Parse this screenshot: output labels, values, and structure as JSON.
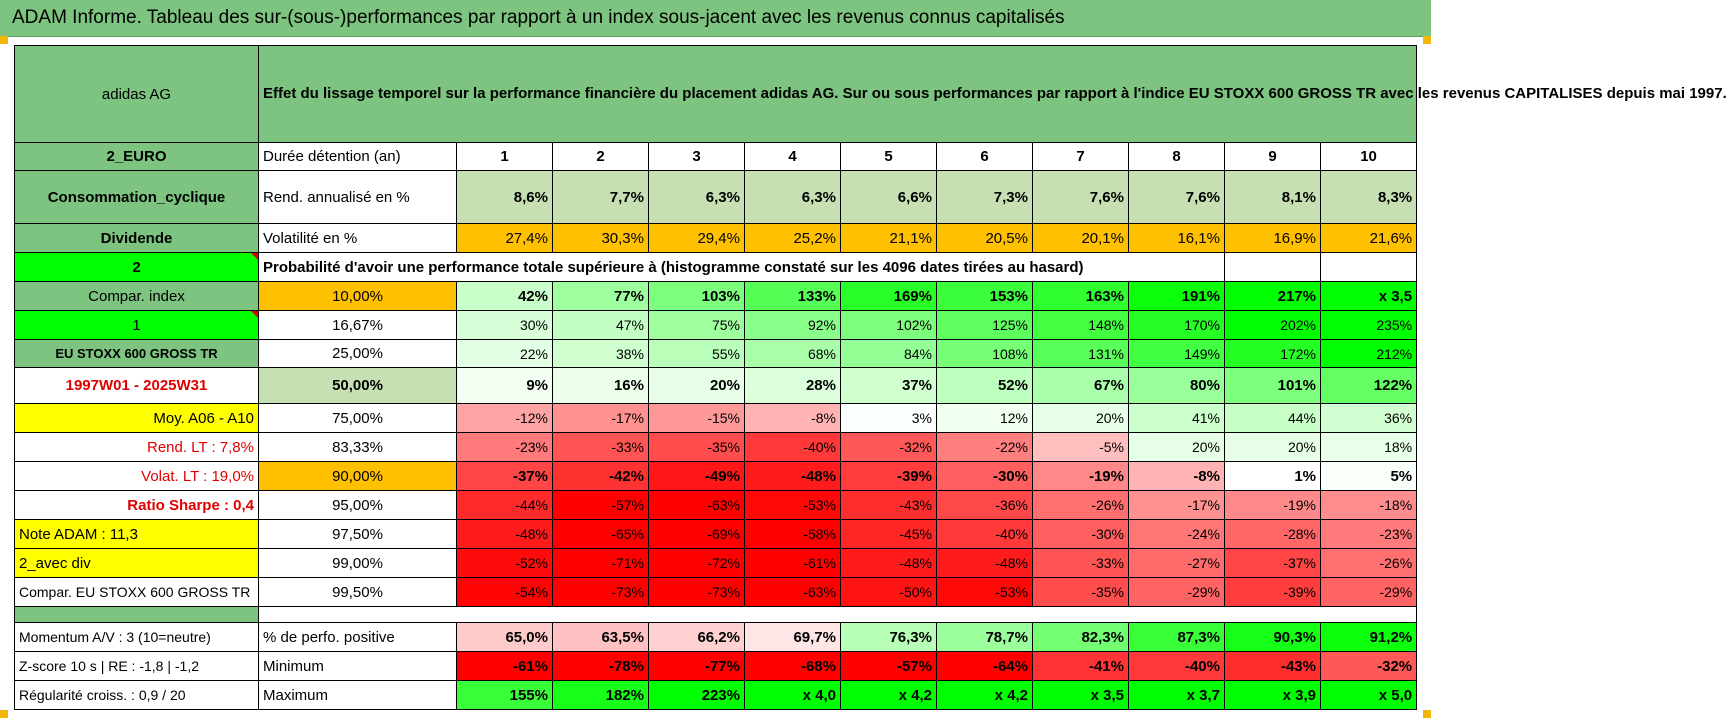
{
  "report_title": "ADAM Informe. Tableau des sur-(sous-)performances par rapport à un index sous-jacent avec les revenus connus capitalisés",
  "stock_name": "adidas AG",
  "description": "Effet du lissage temporel sur la performance financière du placement adidas AG. Sur ou sous performances par rapport à l'indice EU STOXX 600 GROSS TR avec les revenus CAPITALISES depuis mai 1997.",
  "colors": {
    "header_green": "#7CC47F",
    "light_green": "#C6E0B4",
    "bright_green": "#00FF00",
    "orange": "#FFC000",
    "yellow": "#FFFF00",
    "red": "#FF0000",
    "label_red": "#E00000"
  },
  "years": [
    "1",
    "2",
    "3",
    "4",
    "5",
    "6",
    "7",
    "8",
    "9",
    "10"
  ],
  "left_labels": {
    "currency": "2_EURO",
    "sector": "Consommation_cyclique",
    "dividend": "Dividende",
    "val_2": "2",
    "compar_index": "Compar. index",
    "val_1": "1",
    "index_name": "EU STOXX 600 GROSS TR",
    "period": "1997W01 - 2025W31",
    "moy": "Moy. A06 - A10",
    "rend_lt": "Rend. LT :   7,8%",
    "volat_lt": "Volat. LT :   19,0%",
    "sharpe": "Ratio Sharpe :   0,4",
    "note": "Note ADAM : 11,3",
    "avec_div": "2_avec div",
    "compar_full": "Compar. EU STOXX 600 GROSS TR"
  },
  "rows_top": {
    "duree_label": "Durée détention (an)",
    "rend_label": "Rend. annualisé en %",
    "rend_values": [
      "8,6%",
      "7,7%",
      "6,3%",
      "6,3%",
      "6,6%",
      "7,3%",
      "7,6%",
      "7,6%",
      "8,1%",
      "8,3%"
    ],
    "vol_label": "Volatilité en %",
    "vol_values": [
      "27,4%",
      "30,3%",
      "29,4%",
      "25,2%",
      "21,1%",
      "20,5%",
      "20,1%",
      "16,1%",
      "16,9%",
      "21,6%"
    ]
  },
  "prob_title": "Probabilité d'avoir une performance totale supérieure à (histogramme constaté sur les 4096 dates tirées au hasard)",
  "prob_rows": [
    {
      "pct": "10,00%",
      "values": [
        "42%",
        "77%",
        "103%",
        "133%",
        "169%",
        "153%",
        "163%",
        "191%",
        "217%",
        "x 3,5"
      ]
    },
    {
      "pct": "16,67%",
      "values": [
        "30%",
        "47%",
        "75%",
        "92%",
        "102%",
        "125%",
        "148%",
        "170%",
        "202%",
        "235%"
      ]
    },
    {
      "pct": "25,00%",
      "values": [
        "22%",
        "38%",
        "55%",
        "68%",
        "84%",
        "108%",
        "131%",
        "149%",
        "172%",
        "212%"
      ]
    },
    {
      "pct": "50,00%",
      "values": [
        "9%",
        "16%",
        "20%",
        "28%",
        "37%",
        "52%",
        "67%",
        "80%",
        "101%",
        "122%"
      ]
    },
    {
      "pct": "75,00%",
      "values": [
        "-12%",
        "-17%",
        "-15%",
        "-8%",
        "3%",
        "12%",
        "20%",
        "41%",
        "44%",
        "36%"
      ]
    },
    {
      "pct": "83,33%",
      "values": [
        "-23%",
        "-33%",
        "-35%",
        "-40%",
        "-32%",
        "-22%",
        "-5%",
        "20%",
        "20%",
        "18%"
      ]
    },
    {
      "pct": "90,00%",
      "values": [
        "-37%",
        "-42%",
        "-49%",
        "-48%",
        "-39%",
        "-30%",
        "-19%",
        "-8%",
        "1%",
        "5%"
      ]
    },
    {
      "pct": "95,00%",
      "values": [
        "-44%",
        "-57%",
        "-63%",
        "-53%",
        "-43%",
        "-36%",
        "-26%",
        "-17%",
        "-19%",
        "-18%"
      ]
    },
    {
      "pct": "97,50%",
      "values": [
        "-48%",
        "-65%",
        "-69%",
        "-58%",
        "-45%",
        "-40%",
        "-30%",
        "-24%",
        "-28%",
        "-23%"
      ]
    },
    {
      "pct": "99,00%",
      "values": [
        "-52%",
        "-71%",
        "-72%",
        "-61%",
        "-48%",
        "-48%",
        "-33%",
        "-27%",
        "-37%",
        "-26%"
      ]
    },
    {
      "pct": "99,50%",
      "values": [
        "-54%",
        "-73%",
        "-73%",
        "-63%",
        "-50%",
        "-53%",
        "-35%",
        "-29%",
        "-39%",
        "-29%"
      ]
    }
  ],
  "bottom_rows": [
    {
      "left": "Momentum A/V : 3 (10=neutre)",
      "label": "% de perfo. positive",
      "values": [
        "65,0%",
        "63,5%",
        "66,2%",
        "69,7%",
        "76,3%",
        "78,7%",
        "82,3%",
        "87,3%",
        "90,3%",
        "91,2%"
      ]
    },
    {
      "left": "Z-score 10 s  |  RE : -1,8  |  -1,2",
      "label": "Minimum",
      "values": [
        "-61%",
        "-78%",
        "-77%",
        "-68%",
        "-57%",
        "-64%",
        "-41%",
        "-40%",
        "-43%",
        "-32%"
      ]
    },
    {
      "left": "Régularité croiss. : 0,9 / 20",
      "label": "Maximum",
      "values": [
        "155%",
        "182%",
        "223%",
        "x 4,0",
        "x 4,2",
        "x 4,2",
        "x 3,5",
        "x 3,7",
        "x 3,9",
        "x 5,0"
      ]
    }
  ]
}
